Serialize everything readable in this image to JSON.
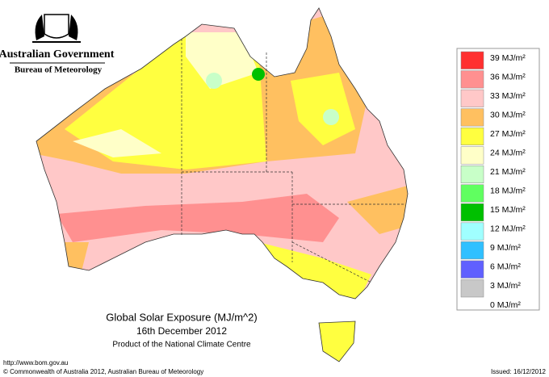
{
  "header": {
    "government": "Australian Government",
    "bureau": "Bureau of Meteorology"
  },
  "map": {
    "title": "Global Solar Exposure (MJ/m^2)",
    "date": "16th December 2012",
    "producer": "Product of the National Climate Centre"
  },
  "legend": {
    "items": [
      "39 MJ/m²",
      "36 MJ/m²",
      "33 MJ/m²",
      "30 MJ/m²",
      "27 MJ/m²",
      "24 MJ/m²",
      "21 MJ/m²",
      "18 MJ/m²",
      "15 MJ/m²",
      "12 MJ/m²",
      "9 MJ/m²",
      "6 MJ/m²",
      "3 MJ/m²",
      "0 MJ/m²"
    ]
  },
  "footer": {
    "url": "http://www.bom.gov.au",
    "copyright": "© Commonwealth of Australia 2012, Australian Bureau of Meteorology",
    "issued": "Issued: 16/12/2012"
  }
}
